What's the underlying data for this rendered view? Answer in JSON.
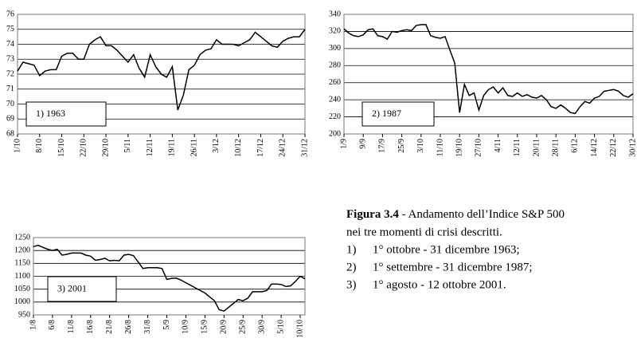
{
  "chart_data": [
    {
      "type": "line",
      "annotation": "1) 1963",
      "color": "#000000",
      "grid": true,
      "ylim": [
        68,
        76
      ],
      "yticks": [
        68,
        69,
        70,
        71,
        72,
        73,
        74,
        75,
        76
      ],
      "categories": [
        "1/10",
        null,
        null,
        null,
        "8/10",
        null,
        null,
        null,
        "15/10",
        null,
        null,
        null,
        "22/10",
        null,
        null,
        null,
        "29/10",
        null,
        null,
        null,
        "5/11",
        null,
        null,
        null,
        "12/11",
        null,
        null,
        null,
        "19/11",
        null,
        null,
        null,
        "26/11",
        null,
        null,
        null,
        "3/12",
        null,
        null,
        null,
        "10/12",
        null,
        null,
        null,
        "17/12",
        null,
        null,
        null,
        "24/12",
        null,
        null,
        null,
        "31/12"
      ],
      "values": [
        72.2,
        72.8,
        72.7,
        72.6,
        71.9,
        72.2,
        72.3,
        72.3,
        73.2,
        73.4,
        73.4,
        73.0,
        73.0,
        74.0,
        74.3,
        74.5,
        73.9,
        73.9,
        73.6,
        73.2,
        72.8,
        73.3,
        72.4,
        71.8,
        73.3,
        72.5,
        72.0,
        71.8,
        72.5,
        69.6,
        70.6,
        72.3,
        72.6,
        73.3,
        73.6,
        73.7,
        74.3,
        74.0,
        74.0,
        74.0,
        73.9,
        74.1,
        74.3,
        74.8,
        74.5,
        74.2,
        73.9,
        73.8,
        74.2,
        74.4,
        74.5,
        74.5,
        75.0
      ]
    },
    {
      "type": "line",
      "annotation": "2) 1987",
      "color": "#000000",
      "grid": true,
      "ylim": [
        200,
        340
      ],
      "yticks": [
        200,
        220,
        240,
        260,
        280,
        300,
        320,
        340
      ],
      "categories": [
        "1/9",
        null,
        null,
        null,
        "9/9",
        null,
        null,
        null,
        "17/9",
        null,
        null,
        null,
        "25/9",
        null,
        null,
        null,
        "3/10",
        null,
        null,
        null,
        "11/10",
        null,
        null,
        null,
        "19/10",
        null,
        null,
        null,
        "27/10",
        null,
        null,
        null,
        "4/11",
        null,
        null,
        null,
        "12/11",
        null,
        null,
        null,
        "20/11",
        null,
        null,
        null,
        "28/11",
        null,
        null,
        null,
        "6/12",
        null,
        null,
        null,
        "14/12",
        null,
        null,
        null,
        "22/12",
        null,
        null,
        null,
        "30/12"
      ],
      "values": [
        323,
        318,
        315,
        314,
        316,
        322,
        323,
        315,
        314,
        311,
        320,
        319,
        321,
        322,
        321,
        327,
        328,
        328,
        315,
        313,
        312,
        314,
        298,
        283,
        225,
        258,
        245,
        248,
        228,
        245,
        252,
        255,
        248,
        254,
        245,
        244,
        248,
        244,
        246,
        243,
        242,
        245,
        240,
        232,
        230,
        234,
        230,
        225,
        224,
        232,
        238,
        236,
        242,
        244,
        250,
        251,
        252,
        250,
        245,
        243,
        247
      ]
    },
    {
      "type": "line",
      "annotation": "3) 2001",
      "color": "#000000",
      "grid": true,
      "ylim": [
        950,
        1250
      ],
      "yticks": [
        950,
        1000,
        1050,
        1100,
        1150,
        1200,
        1250
      ],
      "categories": [
        "1/8",
        null,
        null,
        null,
        "6/8",
        null,
        null,
        null,
        "11/8",
        null,
        null,
        null,
        "16/8",
        null,
        null,
        null,
        "21/8",
        null,
        null,
        null,
        "26/8",
        null,
        null,
        null,
        "31/8",
        null,
        null,
        null,
        "5/9",
        null,
        null,
        null,
        "10/9",
        null,
        null,
        null,
        "15/9",
        null,
        null,
        null,
        "20/9",
        null,
        null,
        null,
        "25/9",
        null,
        null,
        null,
        "30/9",
        null,
        null,
        null,
        "5/10",
        null,
        null,
        null,
        "10/10",
        null
      ],
      "values": [
        1215,
        1220,
        1212,
        1205,
        1200,
        1205,
        1182,
        1185,
        1190,
        1190,
        1190,
        1182,
        1178,
        1162,
        1165,
        1170,
        1160,
        1162,
        1160,
        1182,
        1185,
        1180,
        1155,
        1130,
        1133,
        1133,
        1133,
        1130,
        1088,
        1092,
        1093,
        1085,
        1075,
        1065,
        1055,
        1045,
        1035,
        1020,
        1005,
        970,
        965,
        980,
        995,
        1010,
        1005,
        1015,
        1040,
        1040,
        1040,
        1045,
        1070,
        1070,
        1068,
        1060,
        1063,
        1080,
        1100,
        1090
      ]
    }
  ],
  "caption": {
    "label": "Figura 3.4",
    "text": "- Andamento dell’Indice S&P 500",
    "text2": "nei tre momenti di crisi descritti.",
    "items": [
      {
        "num": "1)",
        "text": "1° ottobre - 31 dicembre 1963;"
      },
      {
        "num": "2)",
        "text": "1° settembre - 31 dicembre 1987;"
      },
      {
        "num": "3)",
        "text": "1° agosto - 12 ottobre 2001."
      }
    ]
  }
}
